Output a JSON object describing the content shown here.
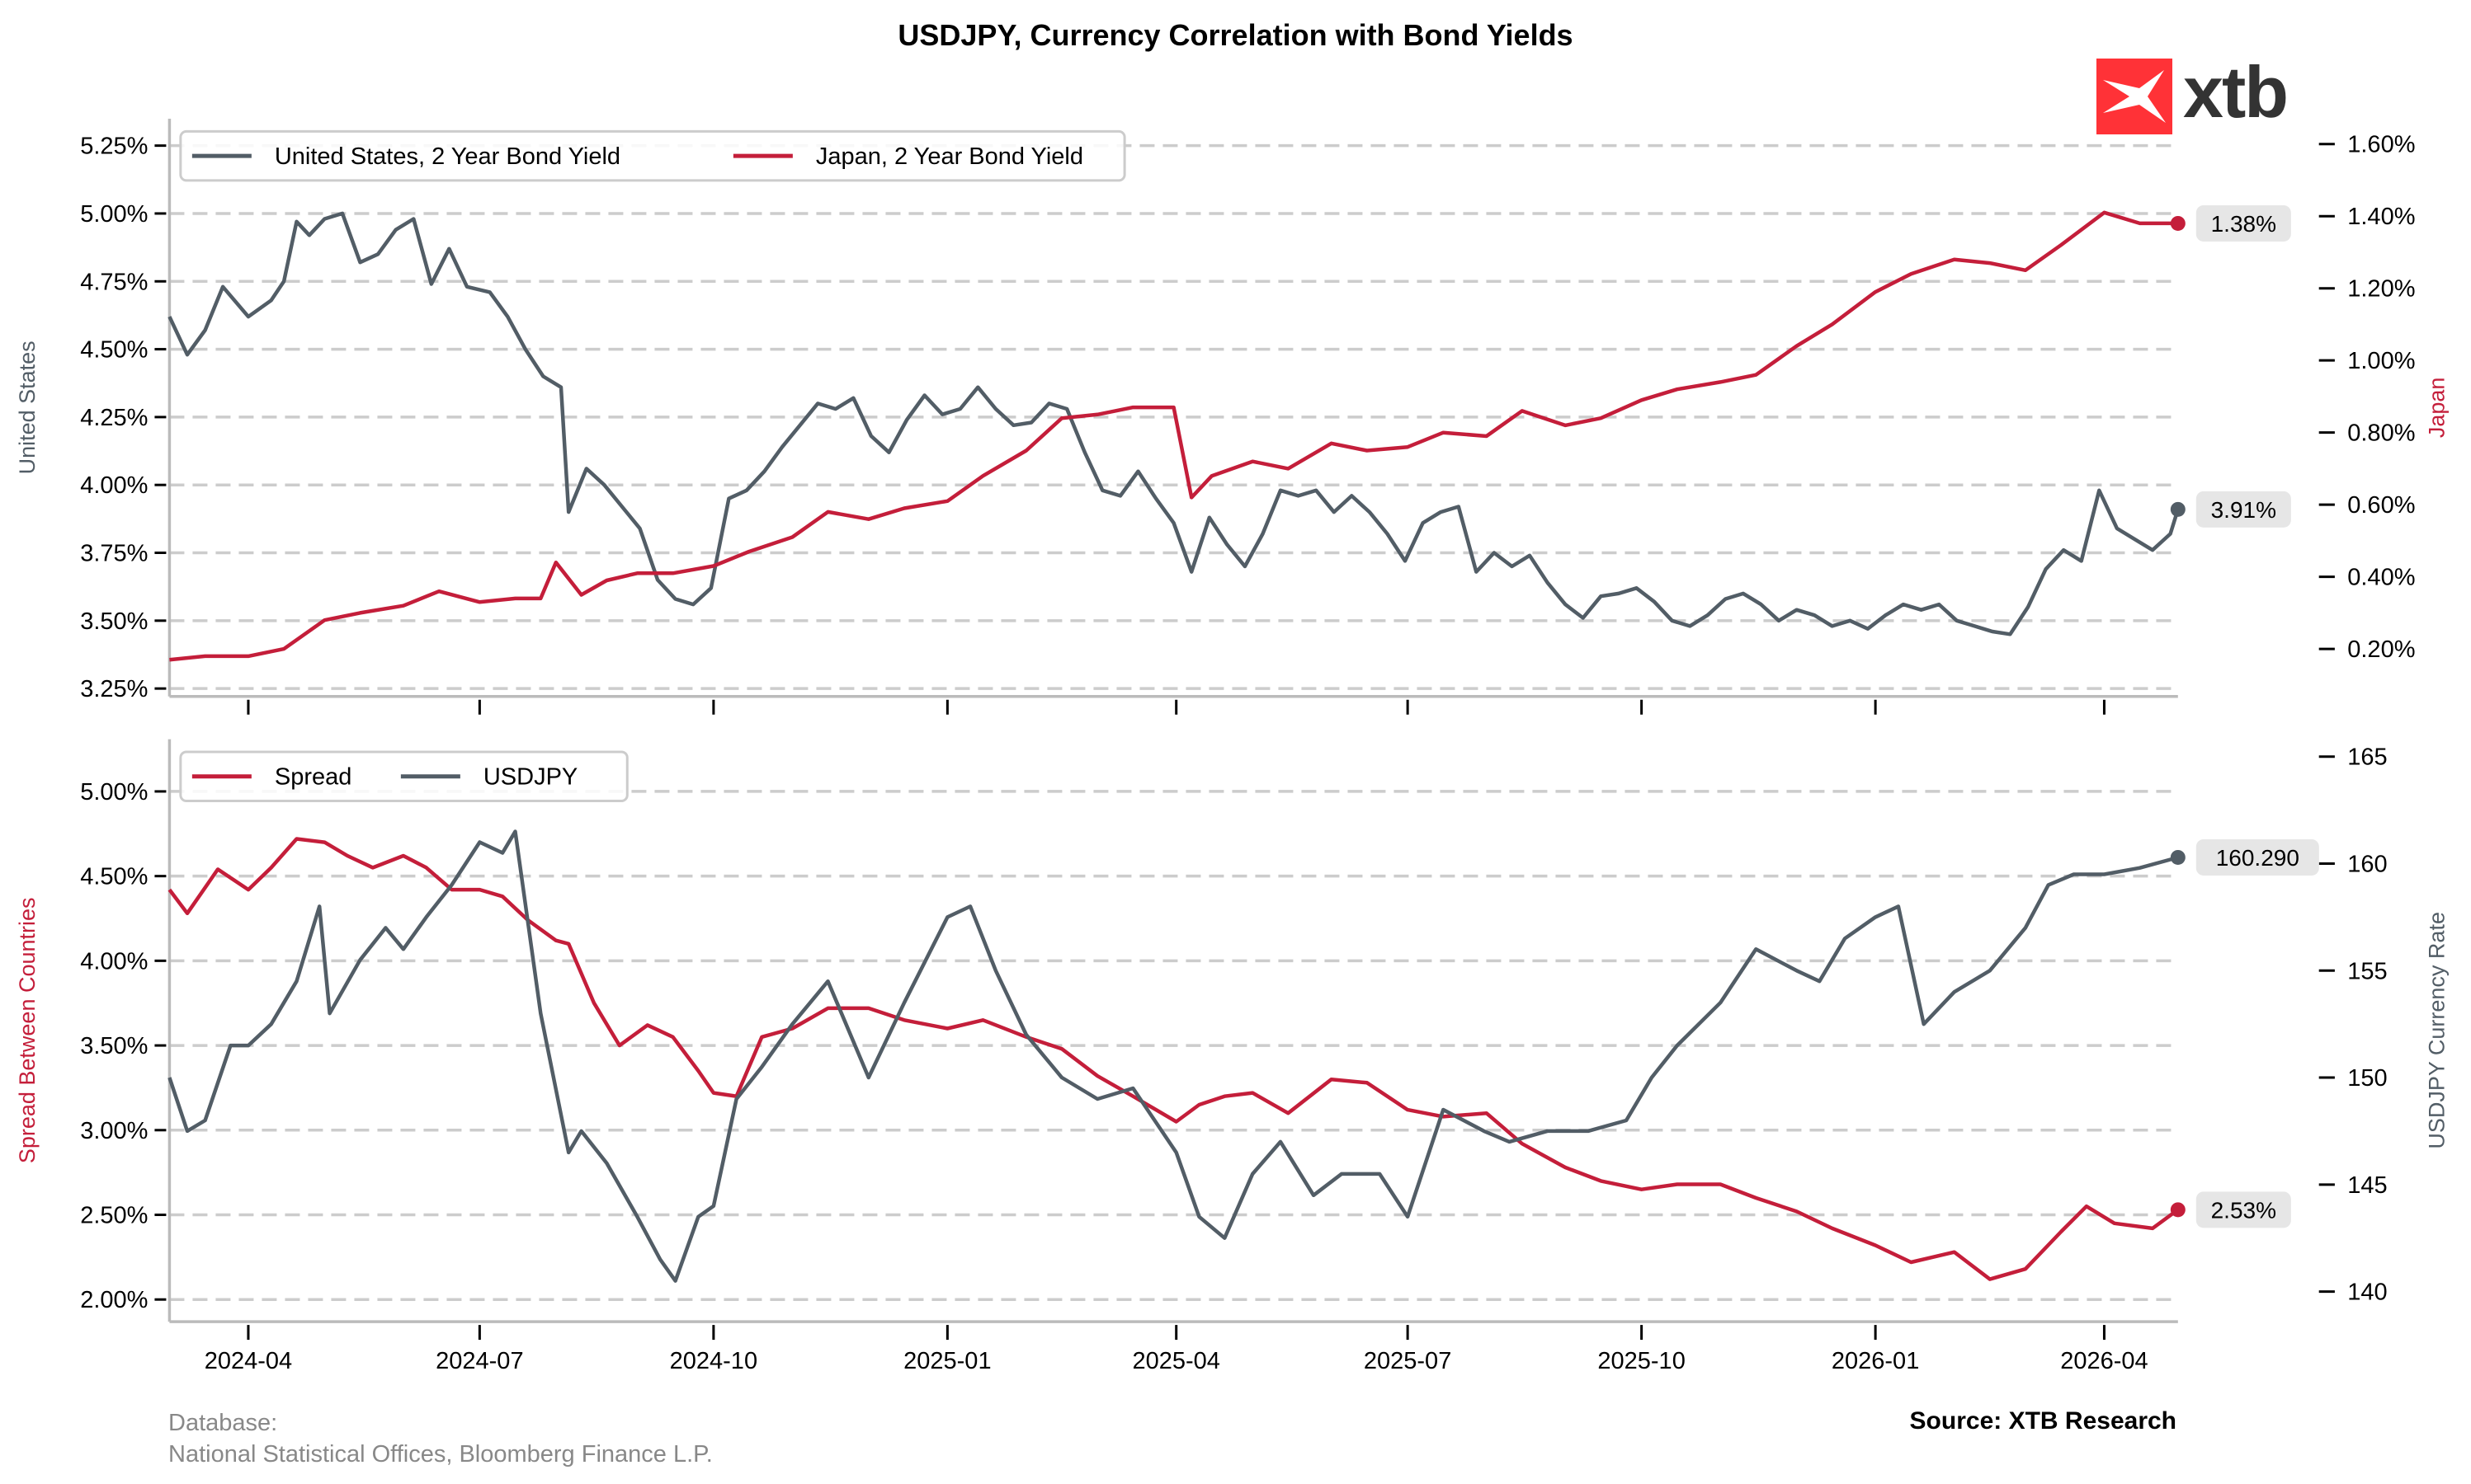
{
  "title": "USDJPY, Currency Correlation with Bond Yields",
  "logo": {
    "text": "xtb",
    "color": "#ff3237"
  },
  "footer": {
    "database_label": "Database:",
    "database_sources": "National Statistical Offices, Bloomberg Finance L.P.",
    "source": "Source: XTB Research"
  },
  "colors": {
    "us": "#525d66",
    "japan": "#c41e3a",
    "grid": "#cccccc",
    "badge": "#e6e6e6"
  },
  "chart_data": [
    {
      "type": "line",
      "title": "",
      "x_range": [
        "2024-03-01",
        "2026-04-30"
      ],
      "x_ticks": [
        "2024-04",
        "2024-07",
        "2024-10",
        "2025-01",
        "2025-04",
        "2025-07",
        "2025-10",
        "2026-01",
        "2026-04"
      ],
      "ylabel_left": "United States",
      "ylabel_right": "Japan",
      "ylim_left": [
        3.22,
        5.35
      ],
      "ylim_right": [
        0.12,
        1.66
      ],
      "yticks_left": [
        "3.25%",
        "3.50%",
        "3.75%",
        "4.00%",
        "4.25%",
        "4.50%",
        "4.75%",
        "5.00%",
        "5.25%"
      ],
      "yticks_left_values": [
        3.25,
        3.5,
        3.75,
        4.0,
        4.25,
        4.5,
        4.75,
        5.0,
        5.25
      ],
      "yticks_right": [
        "0.20%",
        "0.40%",
        "0.60%",
        "0.80%",
        "1.00%",
        "1.20%",
        "1.40%",
        "1.60%"
      ],
      "yticks_right_values": [
        0.2,
        0.4,
        0.6,
        0.8,
        1.0,
        1.2,
        1.4,
        1.6
      ],
      "grid": true,
      "legend": "top-left",
      "series": [
        {
          "name": "United States, 2 Year Bond Yield",
          "axis": "left",
          "last_label": "3.91%",
          "x": [
            "2024-03-01",
            "2024-03-08",
            "2024-03-15",
            "2024-03-22",
            "2024-04-01",
            "2024-04-10",
            "2024-04-15",
            "2024-04-20",
            "2024-04-25",
            "2024-05-01",
            "2024-05-08",
            "2024-05-15",
            "2024-05-22",
            "2024-05-29",
            "2024-06-05",
            "2024-06-12",
            "2024-06-19",
            "2024-06-26",
            "2024-07-05",
            "2024-07-12",
            "2024-07-19",
            "2024-07-26",
            "2024-08-02",
            "2024-08-05",
            "2024-08-12",
            "2024-08-19",
            "2024-08-26",
            "2024-09-02",
            "2024-09-09",
            "2024-09-16",
            "2024-09-23",
            "2024-09-30",
            "2024-10-07",
            "2024-10-14",
            "2024-10-21",
            "2024-10-28",
            "2024-11-04",
            "2024-11-11",
            "2024-11-18",
            "2024-11-25",
            "2024-12-02",
            "2024-12-09",
            "2024-12-16",
            "2024-12-23",
            "2024-12-30",
            "2025-01-06",
            "2025-01-13",
            "2025-01-20",
            "2025-01-27",
            "2025-02-03",
            "2025-02-10",
            "2025-02-17",
            "2025-02-24",
            "2025-03-03",
            "2025-03-10",
            "2025-03-17",
            "2025-03-24",
            "2025-03-31",
            "2025-04-07",
            "2025-04-14",
            "2025-04-21",
            "2025-04-28",
            "2025-05-05",
            "2025-05-12",
            "2025-05-19",
            "2025-05-26",
            "2025-06-02",
            "2025-06-09",
            "2025-06-16",
            "2025-06-23",
            "2025-06-30",
            "2025-07-07",
            "2025-07-14",
            "2025-07-21",
            "2025-07-28",
            "2025-08-04",
            "2025-08-11",
            "2025-08-18",
            "2025-08-25",
            "2025-09-01",
            "2025-09-08",
            "2025-09-15",
            "2025-09-22",
            "2025-09-29",
            "2025-10-06",
            "2025-10-13",
            "2025-10-20",
            "2025-10-27",
            "2025-11-03",
            "2025-11-10",
            "2025-11-17",
            "2025-11-24",
            "2025-12-01",
            "2025-12-08",
            "2025-12-15",
            "2025-12-22",
            "2025-12-29",
            "2026-01-05",
            "2026-01-12",
            "2026-01-19",
            "2026-01-26",
            "2026-02-02",
            "2026-02-09",
            "2026-02-16",
            "2026-02-23",
            "2026-03-02",
            "2026-03-09",
            "2026-03-16",
            "2026-03-23",
            "2026-03-30",
            "2026-04-06",
            "2026-04-13",
            "2026-04-20",
            "2026-04-27",
            "2026-04-30"
          ],
          "y": [
            4.62,
            4.48,
            4.57,
            4.73,
            4.62,
            4.68,
            4.75,
            4.97,
            4.92,
            4.98,
            5.0,
            4.82,
            4.85,
            4.94,
            4.98,
            4.74,
            4.87,
            4.73,
            4.71,
            4.62,
            4.5,
            4.4,
            4.36,
            3.9,
            4.06,
            4.0,
            3.92,
            3.84,
            3.65,
            3.58,
            3.56,
            3.62,
            3.95,
            3.98,
            4.05,
            4.14,
            4.22,
            4.3,
            4.28,
            4.32,
            4.18,
            4.12,
            4.24,
            4.33,
            4.26,
            4.28,
            4.36,
            4.28,
            4.22,
            4.23,
            4.3,
            4.28,
            4.12,
            3.98,
            3.96,
            4.05,
            3.95,
            3.86,
            3.68,
            3.88,
            3.78,
            3.7,
            3.82,
            3.98,
            3.96,
            3.98,
            3.9,
            3.96,
            3.9,
            3.82,
            3.72,
            3.86,
            3.9,
            3.92,
            3.68,
            3.75,
            3.7,
            3.74,
            3.64,
            3.56,
            3.51,
            3.59,
            3.6,
            3.62,
            3.57,
            3.5,
            3.48,
            3.52,
            3.58,
            3.6,
            3.56,
            3.5,
            3.54,
            3.52,
            3.48,
            3.5,
            3.47,
            3.52,
            3.56,
            3.54,
            3.56,
            3.5,
            3.48,
            3.46,
            3.45,
            3.55,
            3.69,
            3.76,
            3.72,
            3.98,
            3.84,
            3.8,
            3.76,
            3.82,
            3.91
          ]
        },
        {
          "name": "Japan, 2 Year Bond Yield",
          "axis": "right",
          "last_label": "1.38%",
          "x": [
            "2024-03-01",
            "2024-03-15",
            "2024-04-01",
            "2024-04-15",
            "2024-05-01",
            "2024-05-15",
            "2024-06-01",
            "2024-06-15",
            "2024-07-01",
            "2024-07-15",
            "2024-07-25",
            "2024-07-31",
            "2024-08-10",
            "2024-08-20",
            "2024-09-01",
            "2024-09-15",
            "2024-10-01",
            "2024-10-15",
            "2024-11-01",
            "2024-11-15",
            "2024-12-01",
            "2024-12-15",
            "2025-01-01",
            "2025-01-15",
            "2025-02-01",
            "2025-02-15",
            "2025-03-01",
            "2025-03-15",
            "2025-03-31",
            "2025-04-07",
            "2025-04-15",
            "2025-05-01",
            "2025-05-15",
            "2025-06-01",
            "2025-06-15",
            "2025-07-01",
            "2025-07-15",
            "2025-08-01",
            "2025-08-15",
            "2025-09-01",
            "2025-09-15",
            "2025-10-01",
            "2025-10-15",
            "2025-11-01",
            "2025-11-15",
            "2025-12-01",
            "2025-12-15",
            "2026-01-01",
            "2026-01-15",
            "2026-02-01",
            "2026-02-15",
            "2026-03-01",
            "2026-03-15",
            "2026-04-01",
            "2026-04-15",
            "2026-04-30"
          ],
          "y": [
            0.17,
            0.18,
            0.18,
            0.2,
            0.28,
            0.3,
            0.32,
            0.36,
            0.33,
            0.34,
            0.34,
            0.44,
            0.35,
            0.39,
            0.41,
            0.41,
            0.43,
            0.47,
            0.51,
            0.58,
            0.56,
            0.59,
            0.61,
            0.68,
            0.75,
            0.84,
            0.85,
            0.87,
            0.87,
            0.62,
            0.68,
            0.72,
            0.7,
            0.77,
            0.75,
            0.76,
            0.8,
            0.79,
            0.86,
            0.82,
            0.84,
            0.89,
            0.92,
            0.94,
            0.96,
            1.04,
            1.1,
            1.19,
            1.24,
            1.28,
            1.27,
            1.25,
            1.32,
            1.41,
            1.38,
            1.38
          ]
        }
      ]
    },
    {
      "type": "line",
      "title": "",
      "x_range": [
        "2024-03-01",
        "2026-04-30"
      ],
      "x_ticks": [
        "2024-04",
        "2024-07",
        "2024-10",
        "2025-01",
        "2025-04",
        "2025-07",
        "2025-10",
        "2026-01",
        "2026-04"
      ],
      "ylabel_left": "Spread Between Countries",
      "ylabel_right": "USDJPY Currency Rate",
      "ylim_left": [
        1.86,
        5.31
      ],
      "ylim_right": [
        138.6,
        165.6
      ],
      "yticks_left": [
        "2.00%",
        "2.50%",
        "3.00%",
        "3.50%",
        "4.00%",
        "4.50%",
        "5.00%"
      ],
      "yticks_left_values": [
        2.0,
        2.5,
        3.0,
        3.5,
        4.0,
        4.5,
        5.0
      ],
      "yticks_right": [
        "140",
        "145",
        "150",
        "155",
        "160",
        "165"
      ],
      "yticks_right_values": [
        140,
        145,
        150,
        155,
        160,
        165
      ],
      "grid": true,
      "legend": "top-left",
      "series": [
        {
          "name": "Spread",
          "axis": "left",
          "last_label": "2.53%",
          "x": [
            "2024-03-01",
            "2024-03-08",
            "2024-03-20",
            "2024-04-01",
            "2024-04-10",
            "2024-04-20",
            "2024-05-01",
            "2024-05-10",
            "2024-05-20",
            "2024-06-01",
            "2024-06-10",
            "2024-06-20",
            "2024-07-01",
            "2024-07-10",
            "2024-07-20",
            "2024-07-31",
            "2024-08-05",
            "2024-08-15",
            "2024-08-25",
            "2024-09-05",
            "2024-09-15",
            "2024-09-25",
            "2024-10-01",
            "2024-10-10",
            "2024-10-20",
            "2024-11-01",
            "2024-11-15",
            "2024-12-01",
            "2024-12-15",
            "2025-01-01",
            "2025-01-15",
            "2025-02-01",
            "2025-02-15",
            "2025-03-01",
            "2025-03-15",
            "2025-04-01",
            "2025-04-10",
            "2025-04-20",
            "2025-05-01",
            "2025-05-15",
            "2025-06-01",
            "2025-06-15",
            "2025-07-01",
            "2025-07-15",
            "2025-08-01",
            "2025-08-15",
            "2025-09-01",
            "2025-09-15",
            "2025-10-01",
            "2025-10-15",
            "2025-11-01",
            "2025-11-15",
            "2025-12-01",
            "2025-12-15",
            "2026-01-01",
            "2026-01-15",
            "2026-02-01",
            "2026-02-15",
            "2026-03-01",
            "2026-03-15",
            "2026-03-25",
            "2026-04-05",
            "2026-04-20",
            "2026-04-30"
          ],
          "y": [
            4.42,
            4.28,
            4.54,
            4.42,
            4.55,
            4.72,
            4.7,
            4.62,
            4.55,
            4.62,
            4.55,
            4.42,
            4.42,
            4.38,
            4.24,
            4.12,
            4.1,
            3.75,
            3.5,
            3.62,
            3.55,
            3.35,
            3.22,
            3.2,
            3.55,
            3.6,
            3.72,
            3.72,
            3.65,
            3.6,
            3.65,
            3.55,
            3.48,
            3.32,
            3.2,
            3.05,
            3.15,
            3.2,
            3.22,
            3.1,
            3.3,
            3.28,
            3.12,
            3.08,
            3.1,
            2.92,
            2.78,
            2.7,
            2.65,
            2.68,
            2.68,
            2.6,
            2.52,
            2.42,
            2.32,
            2.22,
            2.28,
            2.12,
            2.18,
            2.4,
            2.55,
            2.45,
            2.42,
            2.53
          ]
        },
        {
          "name": "USDJPY",
          "axis": "right",
          "last_label": "160.290",
          "x": [
            "2024-03-01",
            "2024-03-08",
            "2024-03-15",
            "2024-03-25",
            "2024-04-01",
            "2024-04-10",
            "2024-04-20",
            "2024-04-29",
            "2024-05-03",
            "2024-05-15",
            "2024-05-25",
            "2024-06-01",
            "2024-06-10",
            "2024-06-20",
            "2024-07-01",
            "2024-07-10",
            "2024-07-15",
            "2024-07-25",
            "2024-08-05",
            "2024-08-10",
            "2024-08-20",
            "2024-09-01",
            "2024-09-10",
            "2024-09-16",
            "2024-09-25",
            "2024-10-01",
            "2024-10-10",
            "2024-10-20",
            "2024-11-01",
            "2024-11-15",
            "2024-12-01",
            "2024-12-15",
            "2025-01-01",
            "2025-01-10",
            "2025-01-20",
            "2025-02-01",
            "2025-02-15",
            "2025-03-01",
            "2025-03-15",
            "2025-04-01",
            "2025-04-10",
            "2025-04-20",
            "2025-05-01",
            "2025-05-12",
            "2025-05-25",
            "2025-06-05",
            "2025-06-20",
            "2025-07-01",
            "2025-07-15",
            "2025-07-31",
            "2025-08-10",
            "2025-08-25",
            "2025-09-10",
            "2025-09-25",
            "2025-10-05",
            "2025-10-15",
            "2025-11-01",
            "2025-11-15",
            "2025-12-01",
            "2025-12-10",
            "2025-12-20",
            "2026-01-01",
            "2026-01-10",
            "2026-01-20",
            "2026-02-01",
            "2026-02-15",
            "2026-03-01",
            "2026-03-10",
            "2026-03-20",
            "2026-04-01",
            "2026-04-15",
            "2026-04-30"
          ],
          "y": [
            150.0,
            147.5,
            148.0,
            151.5,
            151.5,
            152.5,
            154.5,
            158.0,
            153.0,
            155.5,
            157.0,
            156.0,
            157.5,
            159.0,
            161.0,
            160.5,
            161.5,
            153.0,
            146.5,
            147.5,
            146.0,
            143.5,
            141.5,
            140.5,
            143.5,
            144.0,
            149.0,
            150.5,
            152.5,
            154.5,
            150.0,
            153.5,
            157.5,
            158.0,
            155.0,
            152.0,
            150.0,
            149.0,
            149.5,
            146.5,
            143.5,
            142.5,
            145.5,
            147.0,
            144.5,
            145.5,
            145.5,
            143.5,
            148.5,
            147.5,
            147.0,
            147.5,
            147.5,
            148.0,
            150.0,
            151.5,
            153.5,
            156.0,
            155.0,
            154.5,
            156.5,
            157.5,
            158.0,
            152.5,
            154.0,
            155.0,
            157.0,
            159.0,
            159.5,
            159.5,
            159.8,
            160.29
          ]
        }
      ]
    }
  ]
}
